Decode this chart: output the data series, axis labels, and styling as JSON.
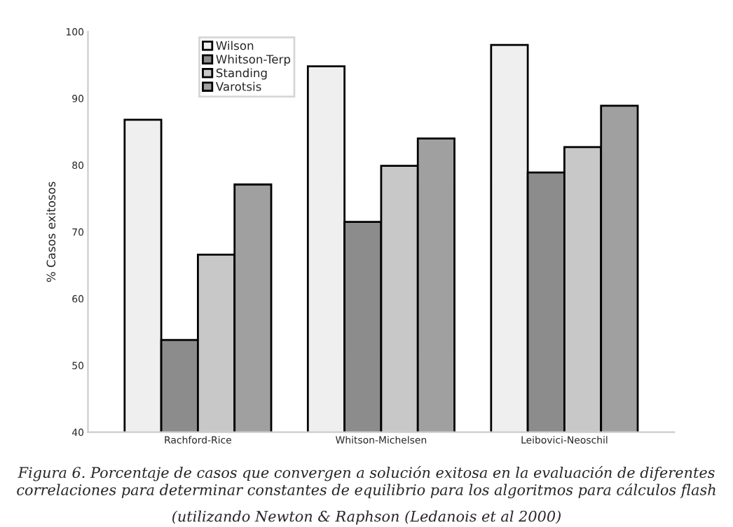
{
  "chart_data": {
    "type": "bar",
    "ylabel": "% Casos exitosos",
    "categories": [
      "Rachford-Rice",
      "Whitson-Michelsen",
      "Leibovici-Neoschil"
    ],
    "series": [
      {
        "name": "Wilson",
        "color": "#efefef",
        "values": [
          86.8,
          94.8,
          98
        ]
      },
      {
        "name": "Whitson-Terp",
        "color": "#8c8c8c",
        "values": [
          53.8,
          71.5,
          78.9
        ]
      },
      {
        "name": "Standing",
        "color": "#c8c8c8",
        "values": [
          66.6,
          79.9,
          82.7
        ]
      },
      {
        "name": "Varotsis",
        "color": "#a0a0a0",
        "values": [
          77.1,
          84,
          88.9
        ]
      }
    ],
    "ylim": [
      40,
      100
    ],
    "yticks": [
      40,
      50,
      60,
      70,
      80,
      90,
      100
    ],
    "grid": false,
    "legend": "top left",
    "annotations": [
      "Figura 6. Porcentaje de casos que convergen a solución exitosa en la evaluación de diferentes correlaciones para determinar constantes de equilibrio para los algoritmos para cálculos flash",
      "(utilizando Newton & Raphson (Ledanois et al 2000)"
    ]
  }
}
